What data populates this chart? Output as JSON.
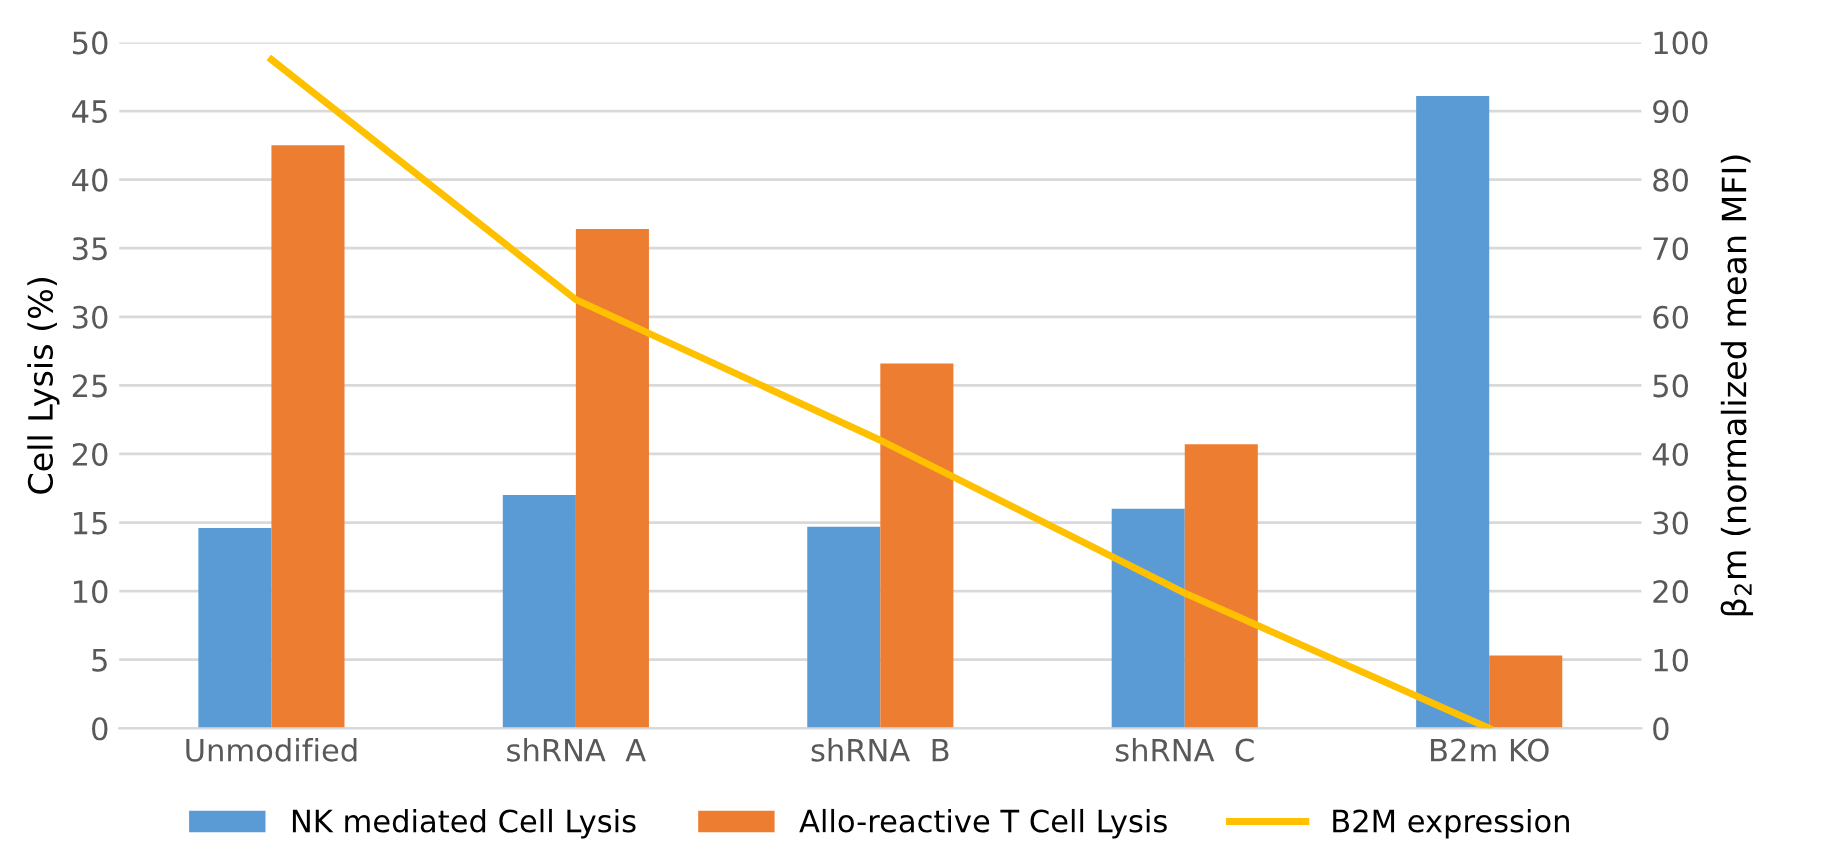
{
  "chart_data": {
    "type": "bar",
    "categories": [
      "Unmodified",
      "shRNA  A",
      "shRNA  B",
      "shRNA  C",
      "B2m KO"
    ],
    "series": [
      {
        "name": "NK mediated Cell Lysis",
        "color": "#5b9bd5",
        "values": [
          14.6,
          17.0,
          14.7,
          16.0,
          46.1
        ]
      },
      {
        "name": "Allo-reactive T Cell Lysis",
        "color": "#ed7d31",
        "values": [
          42.5,
          36.4,
          26.6,
          20.7,
          5.3
        ]
      },
      {
        "name": "B2M expression",
        "color": "#ffc000",
        "type": "line",
        "axis": "y2",
        "values": [
          97.5,
          62.5,
          42,
          19.7,
          0
        ]
      }
    ],
    "ylabel": "Cell Lysis (%)",
    "y2label": "β$_{2}$m (normalized mean MFI)",
    "ylim": [
      0,
      50
    ],
    "yticks": [
      0,
      5,
      10,
      15,
      20,
      25,
      30,
      35,
      40,
      45,
      50
    ],
    "y2lim": [
      0,
      100
    ],
    "y2ticks": [
      0,
      10,
      20,
      30,
      40,
      50,
      60,
      70,
      80,
      90,
      100
    ],
    "grid": "y",
    "legend": "bottom",
    "marker": "none"
  }
}
